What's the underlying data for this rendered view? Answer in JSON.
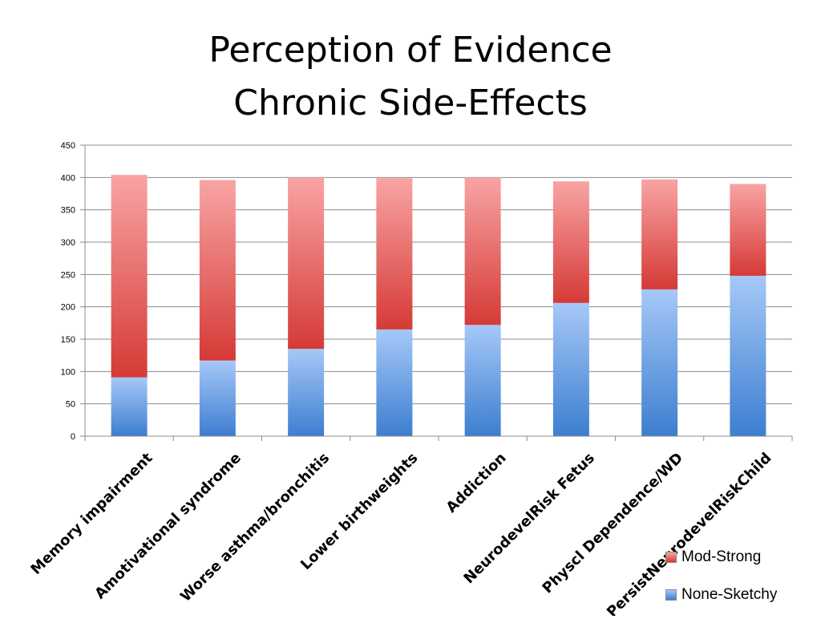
{
  "title": {
    "line1": "Perception of Evidence",
    "line2": "Chronic Side-Effects"
  },
  "chart_data": {
    "type": "bar",
    "stacked": true,
    "categories": [
      "Memory impairment",
      "Amotivational syndrome",
      "Worse asthma/bronchitis",
      "Lower birthweights",
      "Addiction",
      "NeurodevelRisk Fetus",
      "Physcl Dependence/WD",
      "PersistNeurodevelRiskChild"
    ],
    "series": [
      {
        "name": "None-Sketchy",
        "color": "#4a86d4",
        "values": [
          91,
          117,
          135,
          165,
          172,
          206,
          227,
          248
        ]
      },
      {
        "name": "Mod-Strong",
        "color": "#d9453f",
        "values": [
          313,
          279,
          265,
          234,
          228,
          188,
          170,
          142
        ]
      }
    ],
    "ylim": [
      0,
      450
    ],
    "yticks": [
      0,
      50,
      100,
      150,
      200,
      250,
      300,
      350,
      400,
      450
    ],
    "grid": true,
    "legend_position": "bottom-right",
    "xlabel": "",
    "ylabel": ""
  },
  "legend": [
    {
      "label": "Mod-Strong",
      "color": "#d9453f"
    },
    {
      "label": "None-Sketchy",
      "color": "#4a86d4"
    }
  ]
}
